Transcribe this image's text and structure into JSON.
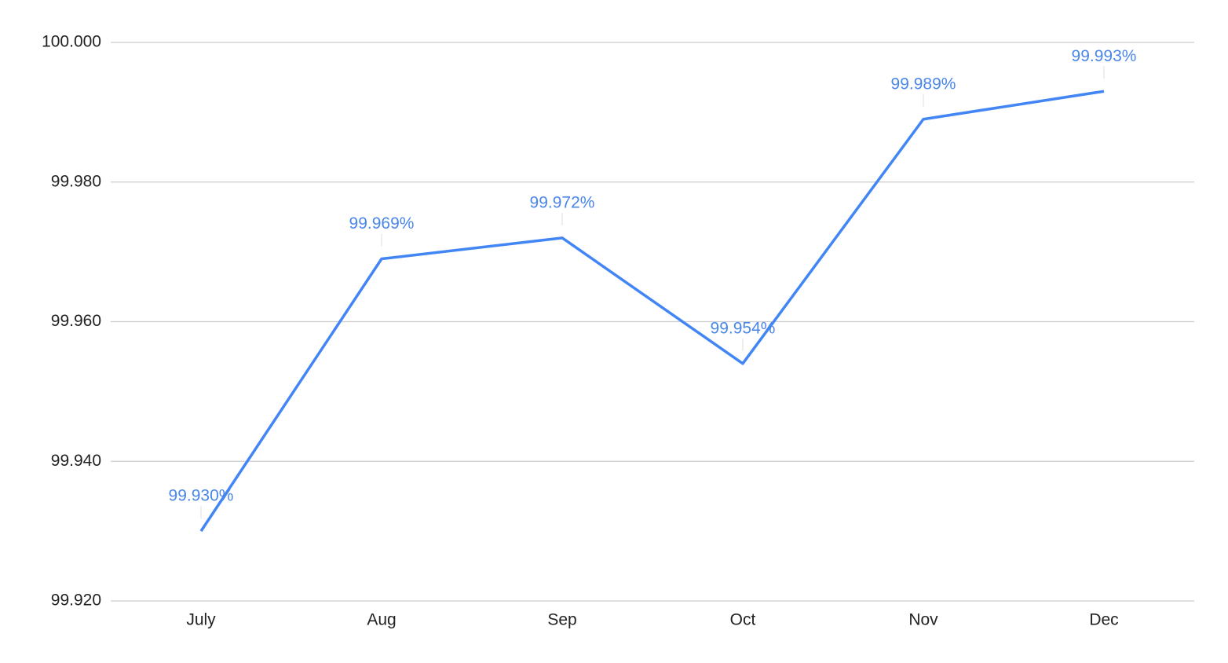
{
  "chart_data": {
    "type": "line",
    "categories": [
      "July",
      "Aug",
      "Sep",
      "Oct",
      "Nov",
      "Dec"
    ],
    "series": [
      {
        "color": "#4285f4",
        "label_color": "#4a86e8",
        "values": [
          99.93,
          99.969,
          99.972,
          99.954,
          99.989,
          99.993
        ],
        "value_labels": [
          "99.930%",
          "99.969%",
          "99.972%",
          "99.954%",
          "99.989%",
          "99.993%"
        ]
      }
    ],
    "ylim": [
      99.92,
      100
    ],
    "yticks": [
      {
        "value": 99.92,
        "label": "99.920"
      },
      {
        "value": 99.94,
        "label": "99.940"
      },
      {
        "value": 99.96,
        "label": "99.960"
      },
      {
        "value": 99.98,
        "label": "99.980"
      },
      {
        "value": 100,
        "label": "100.000"
      }
    ],
    "grid": true
  }
}
